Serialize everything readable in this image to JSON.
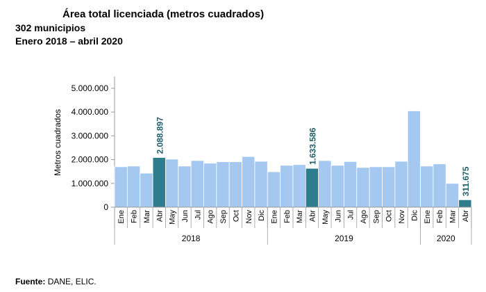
{
  "header": {
    "title": "Área total licenciada (metros cuadrados)",
    "subtitle_1": "302 municipios",
    "subtitle_2": "Enero 2018 – abril 2020"
  },
  "source": {
    "label": "Fuente:",
    "text": "DANE, ELIC."
  },
  "colors": {
    "bar": "#a4c8f0",
    "highlight": "#2e7d8c",
    "label": "#1f5f6b",
    "axis": "#999999"
  },
  "chart_data": {
    "type": "bar",
    "ylabel": "Metros cuadrados",
    "xlabel": "",
    "ylim": [
      0,
      5000000
    ],
    "yticks": [
      0,
      1000000,
      2000000,
      3000000,
      4000000,
      5000000
    ],
    "ytick_labels": [
      "0",
      "1.000.000",
      "2.000.000",
      "3.000.000",
      "4.000.000",
      "5.000.000"
    ],
    "grid": false,
    "categories": [
      "Ene",
      "Feb",
      "Mar",
      "Abr",
      "May",
      "Jun",
      "Jul",
      "Ago",
      "Sep",
      "Oct",
      "Nov",
      "Dic",
      "Ene",
      "Feb",
      "Mar",
      "Abr",
      "May",
      "Jun",
      "Jul",
      "Ago",
      "Sep",
      "Oct",
      "Nov",
      "Dic",
      "Ene",
      "Feb",
      "Mar",
      "Abr"
    ],
    "years": [
      {
        "label": "2018",
        "start": 0,
        "end": 11
      },
      {
        "label": "2019",
        "start": 12,
        "end": 23
      },
      {
        "label": "2020",
        "start": 24,
        "end": 27
      }
    ],
    "values": [
      1700000,
      1730000,
      1430000,
      2088897,
      2020000,
      1730000,
      1960000,
      1850000,
      1910000,
      1910000,
      2130000,
      1930000,
      1490000,
      1760000,
      1790000,
      1633586,
      1960000,
      1760000,
      1920000,
      1670000,
      1700000,
      1700000,
      1930000,
      4050000,
      1730000,
      1820000,
      1000000,
      311675
    ],
    "highlight_indices": [
      3,
      15,
      27
    ],
    "data_labels": [
      {
        "index": 3,
        "text": "2.088.897"
      },
      {
        "index": 15,
        "text": "1.633.586"
      },
      {
        "index": 27,
        "text": "311.675"
      }
    ]
  }
}
